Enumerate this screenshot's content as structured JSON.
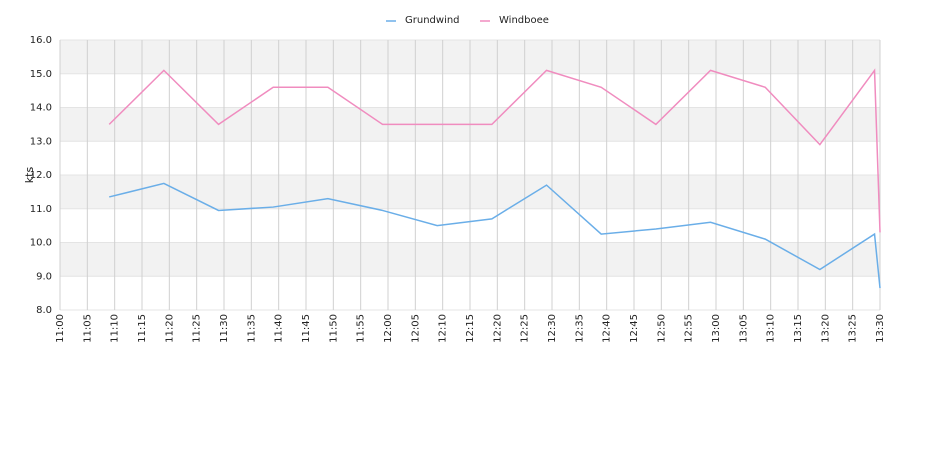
{
  "chart_data": {
    "type": "line",
    "y_label": "kts",
    "x": [
      "11:09",
      "11:19",
      "11:29",
      "11:39",
      "11:49",
      "11:59",
      "12:09",
      "12:19",
      "12:29",
      "12:39",
      "12:49",
      "12:59",
      "13:09",
      "13:19",
      "13:29",
      "13:30"
    ],
    "series": [
      {
        "name": "Grundwind",
        "color": "#6aaee8",
        "values": [
          11.35,
          11.75,
          10.95,
          11.05,
          11.3,
          10.95,
          10.5,
          10.7,
          11.7,
          10.25,
          10.4,
          10.6,
          10.1,
          9.2,
          10.25,
          8.65
        ]
      },
      {
        "name": "Windboee",
        "color": "#f08cbf",
        "values": [
          13.5,
          15.1,
          13.5,
          14.6,
          14.6,
          13.5,
          13.5,
          13.5,
          15.1,
          14.6,
          13.5,
          15.1,
          14.6,
          12.9,
          15.1,
          10.3
        ]
      }
    ],
    "xlim": [
      "11:00",
      "13:30"
    ],
    "xticks": [
      "11:00",
      "11:05",
      "11:10",
      "11:15",
      "11:20",
      "11:25",
      "11:30",
      "11:35",
      "11:40",
      "11:45",
      "11:50",
      "11:55",
      "12:00",
      "12:05",
      "12:10",
      "12:15",
      "12:20",
      "12:25",
      "12:30",
      "12:35",
      "12:40",
      "12:45",
      "12:50",
      "12:55",
      "13:00",
      "13:05",
      "13:10",
      "13:15",
      "13:20",
      "13:25",
      "13:30"
    ],
    "ylim": [
      8,
      16
    ],
    "yticks": [
      {
        "value": 8,
        "label": "8.0"
      },
      {
        "value": 9,
        "label": "9.0"
      },
      {
        "value": 10,
        "label": "10.0"
      },
      {
        "value": 11,
        "label": "11.0"
      },
      {
        "value": 12,
        "label": "12.0"
      },
      {
        "value": 13,
        "label": "13.0"
      },
      {
        "value": 14,
        "label": "14.0"
      },
      {
        "value": 15,
        "label": "15.0"
      },
      {
        "value": 16,
        "label": "16.0"
      }
    ],
    "grid": true,
    "legend": "top"
  }
}
